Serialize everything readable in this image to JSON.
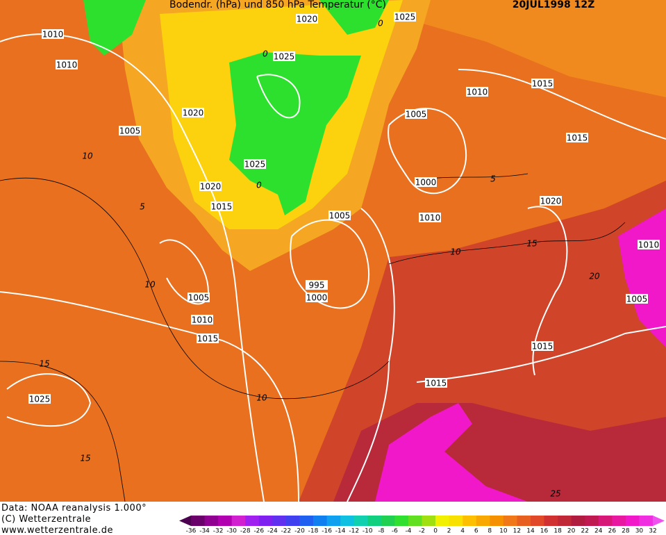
{
  "header": {
    "title": "Bodendr. (hPa) und 850 hPa Temperatur (°C)",
    "date": "20JUL1998 12Z"
  },
  "isobar_labels": [
    "1010",
    "1010",
    "1020",
    "1025",
    "1025",
    "1020",
    "1005",
    "1025",
    "1020",
    "1015",
    "1010",
    "1015",
    "1005",
    "1015",
    "1000",
    "1020",
    "1005",
    "1010",
    "1010",
    "995",
    "1000",
    "1005",
    "1010",
    "1015",
    "1005",
    "1015",
    "1015",
    "1025"
  ],
  "isotherm_labels": [
    "0",
    "0",
    "0",
    "10",
    "5",
    "10",
    "5",
    "10",
    "15",
    "20",
    "15",
    "10",
    "15",
    "25"
  ],
  "footer": {
    "lines": [
      "Data: NOAA reanalysis 1.000°",
      "(C) Wetterzentrale",
      "www.wetterzentrale.de"
    ]
  },
  "color_scale": {
    "labels": [
      "-36",
      "-34",
      "-32",
      "-30",
      "-28",
      "-26",
      "-24",
      "-22",
      "-20",
      "-18",
      "-16",
      "-14",
      "-12",
      "-10",
      "-8",
      "-6",
      "-4",
      "-2",
      "0",
      "2",
      "4",
      "6",
      "8",
      "10",
      "12",
      "14",
      "16",
      "18",
      "20",
      "22",
      "24",
      "26",
      "28",
      "30",
      "32"
    ]
  }
}
